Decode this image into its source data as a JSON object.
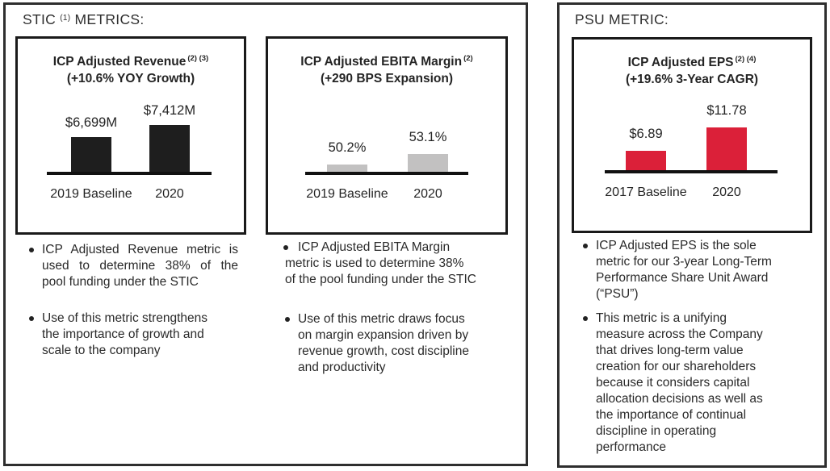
{
  "page": {
    "background_color": "#ffffff",
    "text_color": "#262626",
    "accent_red": "#db2039",
    "bar_gray": "#c2c1c1",
    "bar_black": "#1e1e1e"
  },
  "stic_section": {
    "heading": {
      "main": "STIC",
      "sup": "(1)",
      "rest": "METRICS:"
    }
  },
  "psu_section": {
    "heading": {
      "main": "PSU METRIC:"
    }
  },
  "chart_data": [
    {
      "type": "bar",
      "title": "ICP Adjusted Revenue",
      "title_sup": "(2) (3)",
      "subtitle": "(+10.6% YOY Growth)",
      "categories": [
        "2019 Baseline",
        "2020"
      ],
      "values": [
        6699,
        7412
      ],
      "value_labels": [
        "$6,699M",
        "$7,412M"
      ],
      "bar_color": "#1e1e1e",
      "xlabel": "",
      "ylabel": "",
      "grid": false,
      "legend": false
    },
    {
      "type": "bar",
      "title": "ICP Adjusted EBITA Margin",
      "title_sup": "(2)",
      "subtitle": "(+290 BPS Expansion)",
      "categories": [
        "2019 Baseline",
        "2020"
      ],
      "values": [
        50.2,
        53.1
      ],
      "value_labels": [
        "50.2%",
        "53.1%"
      ],
      "bar_color": "#c2c1c1",
      "xlabel": "",
      "ylabel": "",
      "grid": false,
      "legend": false
    },
    {
      "type": "bar",
      "title": "ICP Adjusted EPS",
      "title_sup": "(2) (4)",
      "subtitle": "(+19.6% 3-Year CAGR)",
      "categories": [
        "2017 Baseline",
        "2020"
      ],
      "values": [
        6.89,
        11.78
      ],
      "value_labels": [
        "$6.89",
        "$11.78"
      ],
      "bar_color": "#db2039",
      "xlabel": "",
      "ylabel": "",
      "grid": false,
      "legend": false
    }
  ],
  "bullets": {
    "col1": [
      "ICP Adjusted Revenue metric is\nused to determine 38% of the\npool funding under the STIC",
      "Use of this metric strengthens\nthe importance of growth and\nscale to the company"
    ],
    "col2": [
      "ICP Adjusted EBITA Margin\nmetric is used to determine 38%\nof the pool funding under the STIC",
      "Use of this metric draws focus\non margin expansion driven by\nrevenue growth, cost discipline\nand productivity"
    ],
    "col3": [
      "ICP Adjusted EPS is the sole\nmetric for our 3-year Long-Term\nPerformance Share Unit Award\n(“PSU”)",
      "This metric is a unifying\nmeasure across the Company\nthat drives long-term value\ncreation for our shareholders\nbecause it considers capital\nallocation decisions as well as\nthe importance of continual\ndiscipline in operating\nperformance"
    ]
  }
}
